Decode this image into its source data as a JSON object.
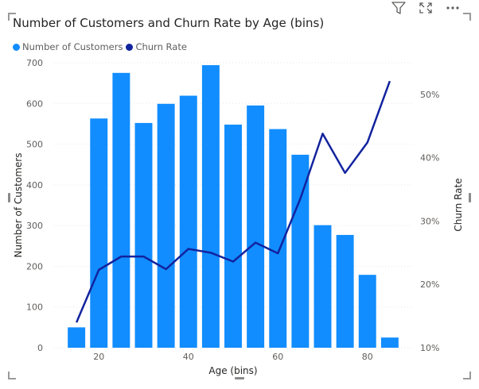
{
  "visual": {
    "title": "Number of Customers and Churn Rate by Age (bins)",
    "icons": [
      "filter-icon",
      "focus-mode-icon",
      "more-options-icon"
    ]
  },
  "legend": {
    "items": [
      {
        "label": "Number of Customers",
        "color": "#118DFF"
      },
      {
        "label": "Churn Rate",
        "color": "#12239E"
      }
    ]
  },
  "chart_data": {
    "type": "bar",
    "title": "Number of Customers and Churn Rate by Age (bins)",
    "xlabel": "Age (bins)",
    "ylabel": "Number of Customers",
    "y2label": "Churn Rate",
    "x": [
      15,
      20,
      25,
      30,
      35,
      40,
      45,
      50,
      55,
      60,
      65,
      70,
      75,
      80,
      85
    ],
    "xlim": [
      10,
      90
    ],
    "xticks": [
      20,
      40,
      60,
      80
    ],
    "ylim": [
      0,
      700
    ],
    "yticks": [
      0,
      100,
      200,
      300,
      400,
      500,
      600,
      700
    ],
    "y2lim": [
      10,
      55
    ],
    "y2ticks": [
      "10%",
      "20%",
      "30%",
      "40%",
      "50%"
    ],
    "y2tick_values": [
      10,
      20,
      30,
      40,
      50
    ],
    "grid": true,
    "legend_position": "top-left",
    "series": [
      {
        "name": "Number of Customers",
        "type": "bar",
        "color": "#118DFF",
        "axis": "left",
        "values": [
          50,
          563,
          675,
          552,
          599,
          619,
          694,
          548,
          595,
          537,
          474,
          301,
          277,
          179,
          25
        ]
      },
      {
        "name": "Churn Rate",
        "type": "line",
        "color": "#12239E",
        "axis": "right",
        "unit": "%",
        "values": [
          14.0,
          22.3,
          24.4,
          24.4,
          22.4,
          25.6,
          25.0,
          23.6,
          26.6,
          24.9,
          33.5,
          43.8,
          37.6,
          42.4,
          52.1
        ]
      }
    ]
  }
}
